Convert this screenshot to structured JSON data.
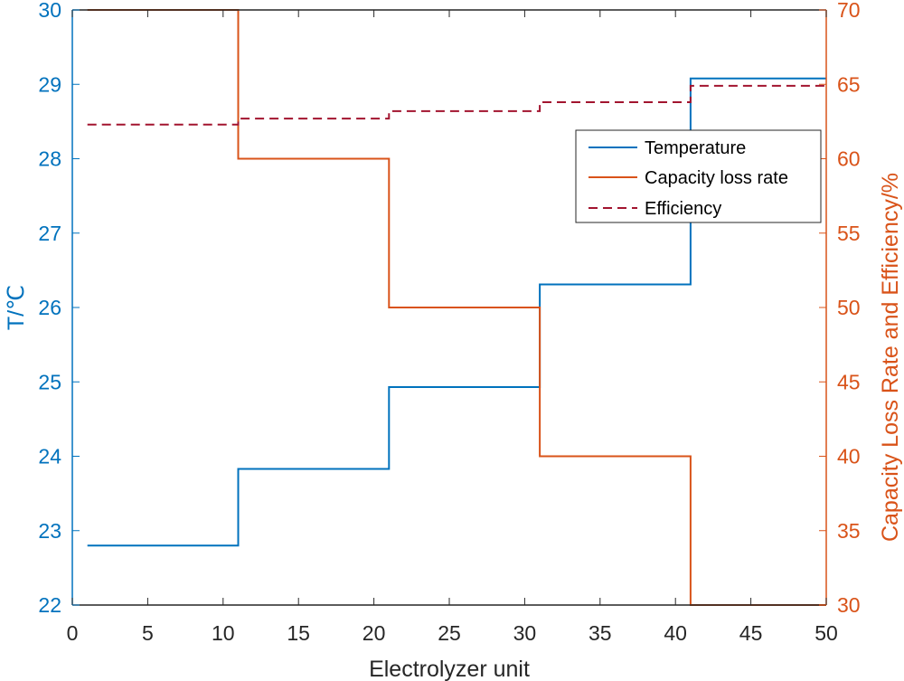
{
  "chart_data": {
    "type": "line",
    "subtype": "step",
    "title": "",
    "xlabel": "Electrolyzer unit",
    "ylabel_left": "T/℃",
    "ylabel_right": "Capacity Loss Rate and Efficiency/%",
    "xlim": [
      0,
      50
    ],
    "ylim_left": [
      22,
      30
    ],
    "ylim_right": [
      30,
      70
    ],
    "x_ticks": [
      0,
      5,
      10,
      15,
      20,
      25,
      30,
      35,
      40,
      45,
      50
    ],
    "y_left_ticks": [
      22,
      23,
      24,
      25,
      26,
      27,
      28,
      29,
      30
    ],
    "y_right_ticks": [
      30,
      35,
      40,
      45,
      50,
      55,
      60,
      65,
      70
    ],
    "grid": false,
    "legend_position": "upper-right",
    "colors": {
      "left_axis": "#0072BD",
      "right_axis": "#D95319",
      "temperature": "#0072BD",
      "capacity": "#D95319",
      "efficiency": "#A2142F"
    },
    "series": [
      {
        "name": "Temperature",
        "axis": "left",
        "style": "solid",
        "x": [
          1,
          11,
          21,
          31,
          41,
          50
        ],
        "values": [
          22.8,
          23.83,
          24.93,
          26.31,
          29.08,
          29.08
        ]
      },
      {
        "name": "Capacity loss rate",
        "axis": "right",
        "style": "solid",
        "x": [
          1,
          11,
          21,
          31,
          41,
          50
        ],
        "values": [
          70,
          60,
          50,
          40,
          30,
          30
        ]
      },
      {
        "name": "Efficiency",
        "axis": "right",
        "style": "dashed",
        "x": [
          1,
          11,
          21,
          31,
          41,
          50
        ],
        "values": [
          62.3,
          62.7,
          63.2,
          63.8,
          64.9,
          64.9
        ]
      }
    ]
  }
}
